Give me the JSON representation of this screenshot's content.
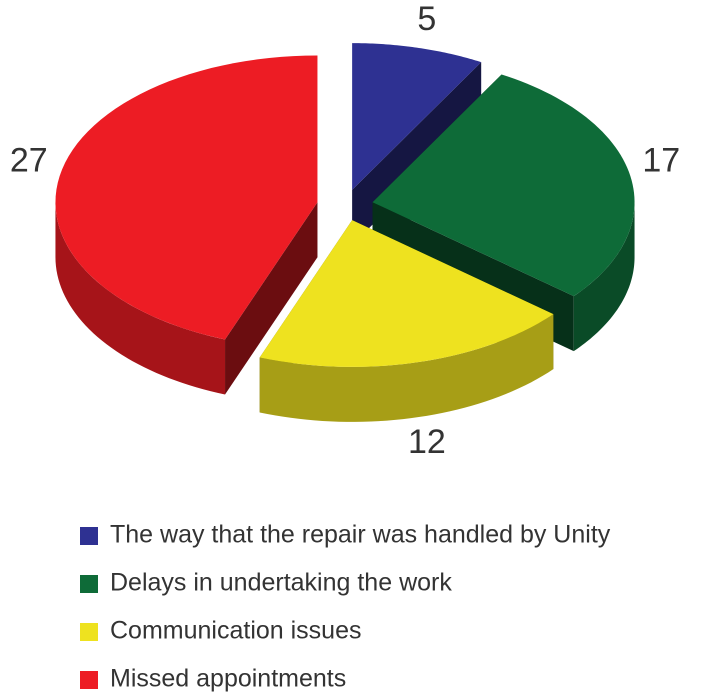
{
  "chart_data": {
    "type": "pie",
    "categories": [
      "The way that the repair was handled by Unity",
      "Delays in undertaking the work",
      "Communication issues",
      "Missed appointments"
    ],
    "values": [
      5,
      17,
      12,
      27
    ],
    "colors": [
      "#2e3192",
      "#0e6b38",
      "#eee21f",
      "#ed1c24"
    ],
    "legend": "bottom"
  }
}
